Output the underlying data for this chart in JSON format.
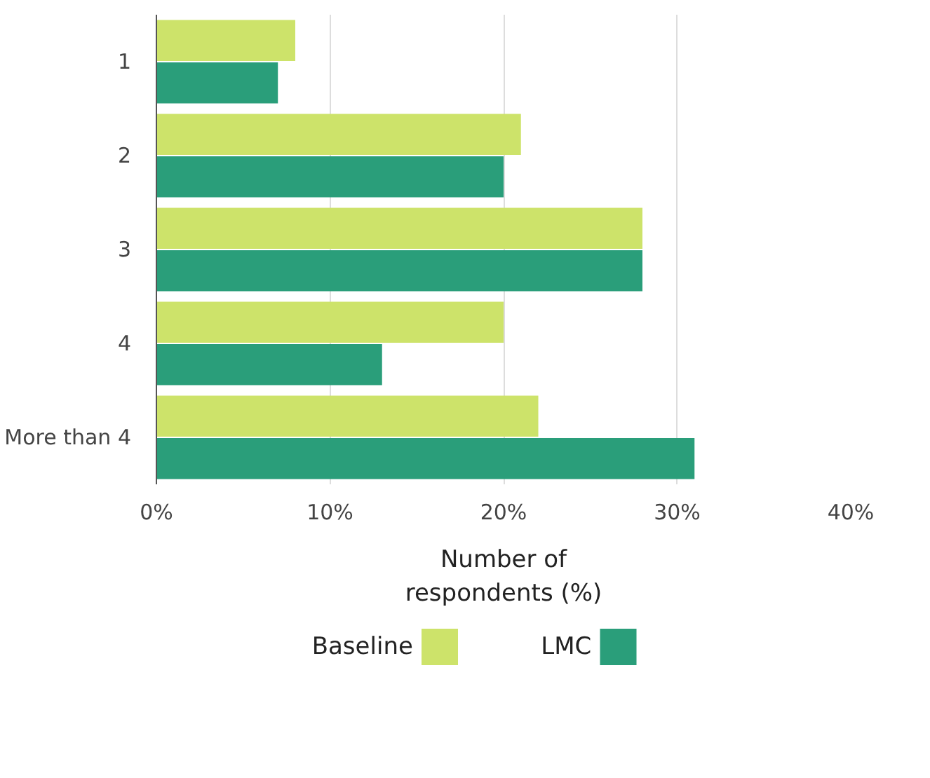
{
  "chart_data": {
    "type": "bar",
    "orientation": "horizontal",
    "xlabel": "Number of\nrespondents (%)",
    "categories": [
      "1",
      "2",
      "3",
      "4",
      "More than 4"
    ],
    "series": [
      {
        "name": "Baseline",
        "color": "#cde36a",
        "values": [
          8,
          21,
          28,
          20,
          22
        ]
      },
      {
        "name": "LMC",
        "color": "#2a9e7a",
        "values": [
          7,
          20,
          28,
          13,
          31
        ]
      }
    ],
    "xlim": [
      0,
      40
    ],
    "xticks": [
      {
        "value": 0,
        "label": "0%"
      },
      {
        "value": 10,
        "label": "10%"
      },
      {
        "value": 20,
        "label": "20%"
      },
      {
        "value": 30,
        "label": "30%"
      },
      {
        "value": 40,
        "label": "40%"
      }
    ],
    "grid": "x",
    "legend": "bottom"
  }
}
